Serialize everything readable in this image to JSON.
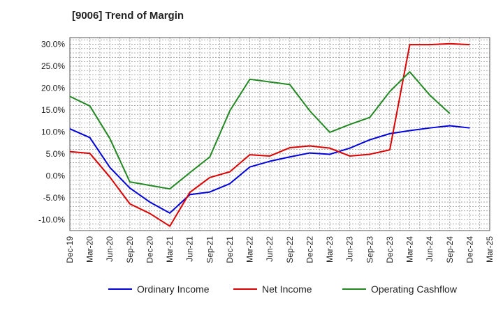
{
  "chart_data": {
    "type": "line",
    "title": "[9006]  Trend of Margin",
    "xlabel": "",
    "ylabel": "",
    "categories": [
      "Dec-19",
      "Mar-20",
      "Jun-20",
      "Sep-20",
      "Dec-20",
      "Mar-21",
      "Jun-21",
      "Sep-21",
      "Dec-21",
      "Mar-22",
      "Jun-22",
      "Sep-22",
      "Dec-22",
      "Mar-23",
      "Jun-23",
      "Sep-23",
      "Dec-23",
      "Mar-24",
      "Jun-24",
      "Sep-24",
      "Dec-24",
      "Mar-25"
    ],
    "ylim": [
      -12.5,
      31.5
    ],
    "yticks": [
      30,
      25,
      20,
      15,
      10,
      5,
      0,
      -5,
      -10
    ],
    "ytick_labels": [
      "30.0%",
      "25.0%",
      "20.0%",
      "15.0%",
      "10.0%",
      "5.0%",
      "0.0%",
      "-5.0%",
      "-10.0%"
    ],
    "grid": true,
    "legend_position": "bottom",
    "series": [
      {
        "name": "Ordinary Income",
        "color": "#0000dd",
        "values": [
          10.7,
          8.7,
          1.9,
          -2.8,
          -6.0,
          -8.5,
          -4.3,
          -3.7,
          -1.8,
          2.0,
          3.3,
          4.3,
          5.2,
          4.9,
          6.3,
          8.2,
          9.6,
          10.3,
          10.9,
          11.4,
          10.9,
          null
        ]
      },
      {
        "name": "Net Income",
        "color": "#dd0000",
        "values": [
          5.5,
          5.1,
          -0.3,
          -6.4,
          -8.6,
          -11.5,
          -3.8,
          -0.4,
          0.9,
          4.8,
          4.5,
          6.4,
          6.8,
          6.3,
          4.5,
          4.9,
          5.9,
          29.9,
          29.9,
          30.1,
          29.9,
          null
        ]
      },
      {
        "name": "Operating Cashflow",
        "color": "#228822",
        "values": [
          18.1,
          15.9,
          8.5,
          -1.4,
          -2.2,
          -3.0,
          0.7,
          4.3,
          14.8,
          22.0,
          21.4,
          20.8,
          14.8,
          9.9,
          11.7,
          13.3,
          19.2,
          23.7,
          18.4,
          14.2,
          null,
          null
        ]
      }
    ]
  }
}
